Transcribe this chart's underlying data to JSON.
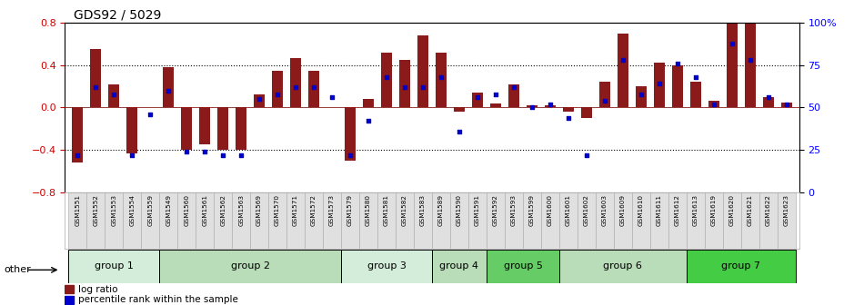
{
  "title": "GDS92 / 5029",
  "samples": [
    "GSM1551",
    "GSM1552",
    "GSM1553",
    "GSM1554",
    "GSM1559",
    "GSM1549",
    "GSM1560",
    "GSM1561",
    "GSM1562",
    "GSM1563",
    "GSM1569",
    "GSM1570",
    "GSM1571",
    "GSM1572",
    "GSM1573",
    "GSM1579",
    "GSM1580",
    "GSM1581",
    "GSM1582",
    "GSM1583",
    "GSM1589",
    "GSM1590",
    "GSM1591",
    "GSM1592",
    "GSM1593",
    "GSM1599",
    "GSM1600",
    "GSM1601",
    "GSM1602",
    "GSM1603",
    "GSM1609",
    "GSM1610",
    "GSM1611",
    "GSM1612",
    "GSM1613",
    "GSM1619",
    "GSM1620",
    "GSM1621",
    "GSM1622",
    "GSM1623"
  ],
  "log_ratio": [
    -0.52,
    0.55,
    0.22,
    -0.43,
    0.0,
    0.38,
    -0.4,
    -0.35,
    -0.4,
    -0.4,
    0.12,
    0.35,
    0.47,
    0.35,
    0.0,
    -0.5,
    0.08,
    0.52,
    0.45,
    0.68,
    0.52,
    -0.04,
    0.14,
    0.04,
    0.22,
    0.02,
    0.02,
    -0.04,
    -0.1,
    0.24,
    0.7,
    0.2,
    0.42,
    0.4,
    0.24,
    0.06,
    0.85,
    0.85,
    0.1,
    0.05
  ],
  "percentile": [
    22,
    62,
    58,
    22,
    46,
    60,
    24,
    24,
    22,
    22,
    55,
    58,
    62,
    62,
    56,
    22,
    42,
    68,
    62,
    62,
    68,
    36,
    56,
    58,
    62,
    50,
    52,
    44,
    22,
    54,
    78,
    58,
    64,
    76,
    68,
    52,
    88,
    78,
    56,
    52
  ],
  "groups": [
    {
      "name": "group 1",
      "start": 0,
      "end": 4,
      "color": "#d4edda"
    },
    {
      "name": "group 2",
      "start": 5,
      "end": 14,
      "color": "#b8ddb8"
    },
    {
      "name": "group 3",
      "start": 15,
      "end": 19,
      "color": "#d4edda"
    },
    {
      "name": "group 4",
      "start": 20,
      "end": 22,
      "color": "#b8ddb8"
    },
    {
      "name": "group 5",
      "start": 23,
      "end": 26,
      "color": "#66cc66"
    },
    {
      "name": "group 6",
      "start": 27,
      "end": 33,
      "color": "#b8ddb8"
    },
    {
      "name": "group 7",
      "start": 34,
      "end": 39,
      "color": "#44cc44"
    }
  ],
  "bar_color": "#8b1a1a",
  "dot_color": "#0000cc",
  "ylim": [
    -0.8,
    0.8
  ],
  "yticks_left": [
    -0.8,
    -0.4,
    0.0,
    0.4,
    0.8
  ],
  "yticks_right": [
    0,
    25,
    50,
    75,
    100
  ],
  "y2labels": [
    "0",
    "25",
    "50",
    "75",
    "100%"
  ],
  "hlines": [
    0.4,
    0.0,
    -0.4
  ],
  "legend_log": "log ratio",
  "legend_pct": "percentile rank within the sample"
}
